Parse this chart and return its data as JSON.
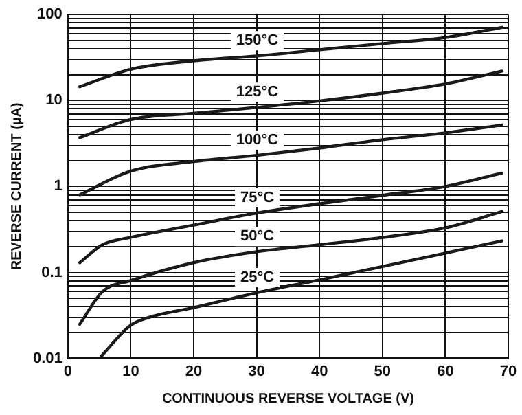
{
  "chart_data": {
    "type": "line",
    "xlabel": "CONTINUOUS REVERSE VOLTAGE (V)",
    "ylabel": "REVERSE CURRENT (µA)",
    "series": [
      {
        "name": "150°C",
        "color": "#1a1a1a",
        "x": [
          1.9,
          9.9,
          20,
          30,
          40,
          50,
          60,
          69
        ],
        "values": [
          14.5,
          23,
          29,
          33,
          39,
          46,
          54,
          71
        ]
      },
      {
        "name": "125°C",
        "color": "#1a1a1a",
        "x": [
          1.9,
          9.9,
          20,
          30,
          40,
          50,
          60,
          69
        ],
        "values": [
          3.7,
          6.0,
          7.1,
          8.3,
          9.9,
          12.2,
          15.6,
          22
        ]
      },
      {
        "name": "100°C",
        "color": "#1a1a1a",
        "x": [
          1.9,
          9.9,
          20,
          30,
          40,
          50,
          60,
          69
        ],
        "values": [
          0.8,
          1.5,
          1.95,
          2.3,
          2.8,
          3.5,
          4.2,
          5.2
        ]
      },
      {
        "name": "75°C",
        "color": "#1a1a1a",
        "x": [
          1.9,
          5.5,
          9.9,
          20,
          30,
          40,
          50,
          60,
          69
        ],
        "values": [
          0.13,
          0.21,
          0.255,
          0.355,
          0.49,
          0.63,
          0.79,
          1.0,
          1.43
        ]
      },
      {
        "name": "50°C",
        "color": "#1a1a1a",
        "x": [
          1.9,
          5.5,
          9.9,
          20,
          30,
          40,
          50,
          60,
          69
        ],
        "values": [
          0.025,
          0.06,
          0.08,
          0.13,
          0.174,
          0.21,
          0.255,
          0.33,
          0.51
        ]
      },
      {
        "name": "25°C",
        "color": "#1a1a1a",
        "x": [
          5.3,
          9.9,
          12.9,
          20,
          30,
          40,
          50,
          60,
          69
        ],
        "values": [
          0.0106,
          0.024,
          0.03,
          0.039,
          0.058,
          0.082,
          0.117,
          0.168,
          0.233
        ]
      }
    ],
    "xlim": [
      0,
      70
    ],
    "xticks": [
      0,
      10,
      20,
      30,
      40,
      50,
      60,
      70
    ],
    "ylim": [
      0.01,
      100
    ],
    "log": true,
    "yticks": [
      0.01,
      {
        "value": 0.02,
        "label": null
      },
      {
        "value": 0.03,
        "label": null
      },
      {
        "value": 0.04,
        "label": null
      },
      {
        "value": 0.05,
        "label": null
      },
      {
        "value": 0.06,
        "label": null
      },
      {
        "value": 0.07,
        "label": null
      },
      {
        "value": 0.08,
        "label": null
      },
      {
        "value": 0.09,
        "label": null
      },
      0.1,
      {
        "value": 0.2,
        "label": null
      },
      {
        "value": 0.3,
        "label": null
      },
      {
        "value": 0.4,
        "label": null
      },
      {
        "value": 0.5,
        "label": null
      },
      {
        "value": 0.6,
        "label": null
      },
      {
        "value": 0.7,
        "label": null
      },
      {
        "value": 0.8,
        "label": null
      },
      {
        "value": 0.9,
        "label": null
      },
      1,
      {
        "value": 2,
        "label": null
      },
      {
        "value": 3,
        "label": null
      },
      {
        "value": 4,
        "label": null
      },
      {
        "value": 5,
        "label": null
      },
      {
        "value": 6,
        "label": null
      },
      {
        "value": 7,
        "label": null
      },
      {
        "value": 8,
        "label": null
      },
      {
        "value": 9,
        "label": null
      },
      10,
      {
        "value": 20,
        "label": null
      },
      {
        "value": 30,
        "label": null
      },
      {
        "value": 40,
        "label": null
      },
      {
        "value": 50,
        "label": null
      },
      {
        "value": 60,
        "label": null
      },
      {
        "value": 70,
        "label": null
      },
      {
        "value": 80,
        "label": null
      },
      {
        "value": 90,
        "label": null
      },
      100
    ],
    "grid": true,
    "legend": false,
    "marker": "none",
    "line_style": "solid"
  }
}
